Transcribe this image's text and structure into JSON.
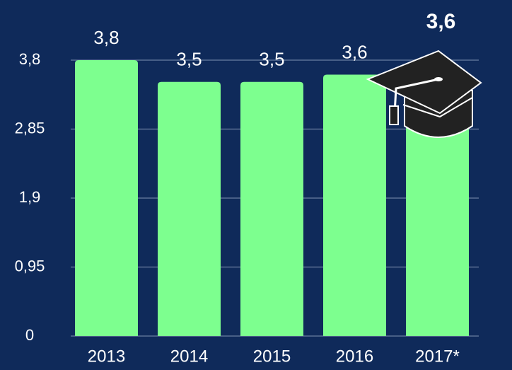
{
  "chart_data": {
    "type": "bar",
    "categories": [
      "2013",
      "2014",
      "2015",
      "2016",
      "2017*"
    ],
    "values": [
      3.8,
      3.5,
      3.5,
      3.6,
      3.6
    ],
    "value_labels": [
      "3,8",
      "3,5",
      "3,5",
      "3,6",
      "3,6"
    ],
    "color": "#7dff8f",
    "ylim": [
      0,
      3.8
    ],
    "yticks": [
      0,
      {
        "value": 0.95,
        "label": "0,95"
      },
      {
        "value": 1.9,
        "label": "1,9"
      },
      {
        "value": 2.85,
        "label": "2,85"
      },
      {
        "value": 3.8,
        "label": "3,8"
      }
    ],
    "grid": true
  }
}
